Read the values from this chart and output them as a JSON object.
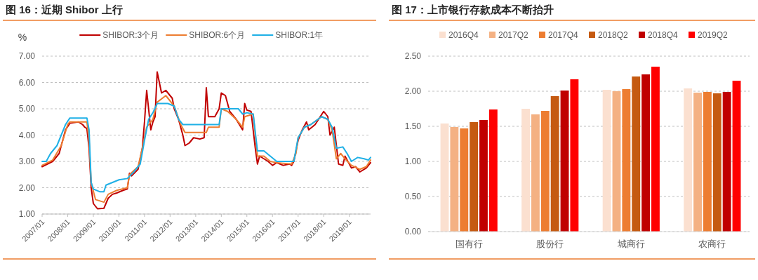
{
  "chart_data": [
    {
      "type": "line",
      "title": "图 16：近期 Shibor 上行",
      "ylabel": "%",
      "xlim": [
        "2007-01",
        "2019-11"
      ],
      "xticks": [
        {
          "value": "2007-01",
          "label": "2007/01"
        },
        {
          "value": "2008-01",
          "label": "2008/01"
        },
        {
          "value": "2009-01",
          "label": "2009/01"
        },
        {
          "value": "2010-01",
          "label": "2010/01"
        },
        {
          "value": "2011-01",
          "label": "2011/01"
        },
        {
          "value": "2012-01",
          "label": "2012/01"
        },
        {
          "value": "2013-01",
          "label": "2013/01"
        },
        {
          "value": "2014-01",
          "label": "2014/01"
        },
        {
          "value": "2015-01",
          "label": "2015/01"
        },
        {
          "value": "2016-01",
          "label": "2016/01"
        },
        {
          "value": "2017-01",
          "label": "2017/01"
        },
        {
          "value": "2018-01",
          "label": "2018/01"
        },
        {
          "value": "2019-01",
          "label": "2019/01"
        }
      ],
      "ylim": [
        1,
        7
      ],
      "yticks": [
        {
          "value": 1,
          "label": "1.00"
        },
        {
          "value": 2,
          "label": "2.00"
        },
        {
          "value": 3,
          "label": "3.00"
        },
        {
          "value": 4,
          "label": "4.00"
        },
        {
          "value": 5,
          "label": "5.00"
        },
        {
          "value": 6,
          "label": "6.00"
        },
        {
          "value": 7,
          "label": "7.00"
        }
      ],
      "grid": "y",
      "legend": "top",
      "line_style": "solid",
      "series": [
        {
          "name": "SHIBOR:3个月",
          "color": "#c00000",
          "x": [
            "2007-01",
            "2007-06",
            "2007-09",
            "2007-12",
            "2008-02",
            "2008-06",
            "2008-08",
            "2008-09",
            "2008-10",
            "2008-11",
            "2008-12",
            "2009-01",
            "2009-03",
            "2009-06",
            "2009-08",
            "2009-10",
            "2009-12",
            "2010-03",
            "2010-05",
            "2010-06",
            "2010-07",
            "2010-10",
            "2010-12",
            "2011-01",
            "2011-02",
            "2011-04",
            "2011-05",
            "2011-06",
            "2011-07",
            "2011-08",
            "2011-09",
            "2011-11",
            "2012-01",
            "2012-02",
            "2012-03",
            "2012-05",
            "2012-07",
            "2012-08",
            "2012-10",
            "2012-12",
            "2013-03",
            "2013-05",
            "2013-06",
            "2013-07",
            "2013-10",
            "2013-12",
            "2014-01",
            "2014-03",
            "2014-05",
            "2014-08",
            "2014-11",
            "2014-12",
            "2015-01",
            "2015-03",
            "2015-05",
            "2015-06",
            "2015-07",
            "2015-09",
            "2015-11",
            "2016-01",
            "2016-03",
            "2016-06",
            "2016-09",
            "2016-10",
            "2016-11",
            "2017-01",
            "2017-03",
            "2017-05",
            "2017-06",
            "2017-09",
            "2018-01",
            "2018-03",
            "2018-04",
            "2018-06",
            "2018-08",
            "2018-10",
            "2018-11",
            "2019-02",
            "2019-04",
            "2019-06",
            "2019-09",
            "2019-11"
          ],
          "values": [
            2.8,
            3.0,
            3.3,
            4.2,
            4.45,
            4.5,
            4.4,
            4.3,
            4.25,
            3.5,
            2.0,
            1.4,
            1.2,
            1.22,
            1.6,
            1.75,
            1.8,
            1.9,
            1.95,
            2.55,
            2.45,
            2.7,
            3.5,
            4.5,
            5.7,
            4.2,
            4.5,
            4.7,
            6.4,
            6.0,
            5.6,
            5.7,
            5.5,
            5.4,
            5.0,
            4.6,
            4.0,
            3.6,
            3.7,
            3.9,
            3.85,
            3.9,
            5.8,
            4.7,
            4.7,
            5.0,
            5.6,
            5.5,
            4.9,
            4.6,
            4.2,
            5.2,
            4.95,
            4.9,
            3.5,
            2.9,
            3.2,
            3.1,
            3.0,
            2.85,
            2.95,
            2.85,
            2.9,
            2.85,
            3.0,
            3.8,
            4.2,
            4.5,
            4.2,
            4.4,
            4.9,
            4.7,
            4.0,
            4.3,
            2.9,
            2.85,
            3.2,
            2.75,
            2.8,
            2.6,
            2.75,
            2.95
          ]
        },
        {
          "name": "SHIBOR:6个月",
          "color": "#ed7d31",
          "x": [
            "2007-01",
            "2007-06",
            "2007-10",
            "2008-01",
            "2008-02",
            "2008-10",
            "2008-11",
            "2008-12",
            "2009-02",
            "2009-06",
            "2009-08",
            "2009-12",
            "2010-05",
            "2010-06",
            "2010-10",
            "2010-12",
            "2011-02",
            "2011-05",
            "2011-07",
            "2011-11",
            "2012-03",
            "2012-06",
            "2012-08",
            "2013-06",
            "2013-07",
            "2013-12",
            "2014-01",
            "2014-04",
            "2014-08",
            "2014-11",
            "2014-12",
            "2015-04",
            "2015-06",
            "2015-09",
            "2015-12",
            "2016-03",
            "2016-10",
            "2016-12",
            "2017-01",
            "2017-04",
            "2017-07",
            "2017-12",
            "2018-03",
            "2018-05",
            "2018-07",
            "2018-09",
            "2018-11",
            "2019-02",
            "2019-06",
            "2019-09",
            "2019-11"
          ],
          "values": [
            2.85,
            3.05,
            3.6,
            4.4,
            4.5,
            4.5,
            3.8,
            2.2,
            1.55,
            1.45,
            1.75,
            1.9,
            2.0,
            2.5,
            2.8,
            3.5,
            4.3,
            4.6,
            5.25,
            5.5,
            5.1,
            4.4,
            4.1,
            4.1,
            4.3,
            4.3,
            5.0,
            4.9,
            4.6,
            4.3,
            4.7,
            4.8,
            3.2,
            3.2,
            3.0,
            2.95,
            2.9,
            3.3,
            3.9,
            4.3,
            4.4,
            4.7,
            4.6,
            4.2,
            3.1,
            3.3,
            3.1,
            2.85,
            2.7,
            2.8,
            3.05
          ]
        },
        {
          "name": "SHIBOR:1年",
          "color": "#1fb0e6",
          "x": [
            "2007-01",
            "2007-03",
            "2007-05",
            "2007-08",
            "2007-12",
            "2008-02",
            "2008-10",
            "2008-11",
            "2008-12",
            "2009-01",
            "2009-04",
            "2009-06",
            "2009-07",
            "2009-10",
            "2010-01",
            "2010-05",
            "2010-08",
            "2010-11",
            "2011-01",
            "2011-03",
            "2011-05",
            "2011-07",
            "2011-12",
            "2012-03",
            "2012-05",
            "2012-07",
            "2013-12",
            "2014-01",
            "2014-09",
            "2014-11",
            "2015-01",
            "2015-04",
            "2015-06",
            "2015-09",
            "2015-12",
            "2016-03",
            "2016-11",
            "2017-01",
            "2017-04",
            "2017-07",
            "2017-12",
            "2018-03",
            "2018-05",
            "2018-07",
            "2018-10",
            "2018-12",
            "2019-02",
            "2019-05",
            "2019-08",
            "2019-10",
            "2019-11"
          ],
          "values": [
            3.0,
            3.0,
            3.3,
            3.6,
            4.4,
            4.65,
            4.65,
            4.2,
            2.2,
            1.95,
            1.85,
            1.85,
            2.1,
            2.2,
            2.3,
            2.35,
            2.6,
            2.9,
            3.8,
            4.6,
            4.85,
            5.2,
            5.2,
            5.1,
            4.6,
            4.4,
            4.4,
            5.0,
            5.0,
            4.8,
            4.85,
            4.8,
            3.4,
            3.4,
            3.2,
            3.0,
            3.0,
            3.9,
            4.3,
            4.4,
            4.7,
            4.6,
            4.3,
            3.5,
            3.55,
            3.3,
            3.0,
            3.15,
            3.1,
            3.05,
            3.15
          ]
        }
      ]
    },
    {
      "type": "bar",
      "title": "图 17：上市银行存款成本不断抬升",
      "categories": [
        "国有行",
        "股份行",
        "城商行",
        "农商行"
      ],
      "ylim": [
        0,
        2.5
      ],
      "yticks": [
        {
          "value": 0,
          "label": "0.00"
        },
        {
          "value": 0.5,
          "label": "0.50"
        },
        {
          "value": 1,
          "label": "1.00"
        },
        {
          "value": 1.5,
          "label": "1.50"
        },
        {
          "value": 2,
          "label": "2.00"
        },
        {
          "value": 2.5,
          "label": "2.50"
        }
      ],
      "grid": "y",
      "legend": "top",
      "series": [
        {
          "name": "2016Q4",
          "color": "#fbe0d0",
          "values": [
            1.54,
            1.75,
            2.02,
            2.04
          ]
        },
        {
          "name": "2017Q2",
          "color": "#f4b183",
          "values": [
            1.49,
            1.67,
            2.0,
            1.98
          ]
        },
        {
          "name": "2017Q4",
          "color": "#ed7d31",
          "values": [
            1.47,
            1.72,
            2.03,
            1.99
          ]
        },
        {
          "name": "2018Q2",
          "color": "#c55a11",
          "values": [
            1.56,
            1.93,
            2.21,
            1.97
          ]
        },
        {
          "name": "2018Q4",
          "color": "#c00000",
          "values": [
            1.59,
            2.01,
            2.24,
            1.99
          ]
        },
        {
          "name": "2019Q2",
          "color": "#ff0000",
          "values": [
            1.74,
            2.17,
            2.35,
            2.15
          ]
        }
      ]
    }
  ]
}
